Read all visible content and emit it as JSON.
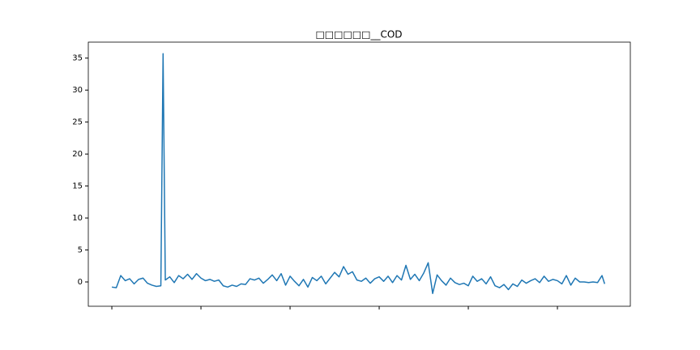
{
  "chart_data": {
    "type": "line",
    "title": "□□□□□□__COD",
    "x": [
      0,
      50,
      100,
      150,
      200,
      250,
      300,
      350,
      400,
      450,
      500,
      550,
      575,
      600,
      650,
      700,
      750,
      800,
      850,
      900,
      950,
      1000,
      1050,
      1100,
      1150,
      1200,
      1250,
      1300,
      1350,
      1400,
      1450,
      1500,
      1550,
      1600,
      1650,
      1700,
      1750,
      1800,
      1850,
      1900,
      1950,
      2000,
      2050,
      2100,
      2150,
      2200,
      2250,
      2300,
      2350,
      2400,
      2450,
      2500,
      2550,
      2600,
      2650,
      2700,
      2750,
      2800,
      2850,
      2900,
      2950,
      3000,
      3050,
      3100,
      3150,
      3200,
      3250,
      3300,
      3350,
      3400,
      3450,
      3500,
      3550,
      3600,
      3650,
      3700,
      3750,
      3800,
      3850,
      3900,
      3950,
      4000,
      4050,
      4100,
      4150,
      4200,
      4250,
      4300,
      4350,
      4400,
      4450,
      4500,
      4550,
      4600,
      4650,
      4700,
      4750,
      4800,
      4850,
      4900,
      4950,
      5000,
      5050,
      5100,
      5150,
      5200,
      5250,
      5300,
      5350,
      5400,
      5450,
      5500,
      5530
    ],
    "series": [
      {
        "color": "#1f77b4",
        "values": [
          -0.8,
          -0.9,
          1.0,
          0.2,
          0.5,
          -0.3,
          0.4,
          0.6,
          -0.2,
          -0.5,
          -0.7,
          -0.6,
          35.7,
          0.3,
          0.8,
          -0.1,
          1.0,
          0.5,
          1.2,
          0.4,
          1.3,
          0.6,
          0.2,
          0.4,
          0.1,
          0.3,
          -0.6,
          -0.8,
          -0.5,
          -0.7,
          -0.3,
          -0.4,
          0.5,
          0.3,
          0.6,
          -0.2,
          0.4,
          1.1,
          0.2,
          1.3,
          -0.5,
          0.9,
          0.1,
          -0.6,
          0.4,
          -0.8,
          0.7,
          0.2,
          0.9,
          -0.3,
          0.6,
          1.5,
          0.8,
          2.4,
          1.2,
          1.6,
          0.3,
          0.1,
          0.6,
          -0.2,
          0.5,
          0.8,
          0.1,
          0.9,
          -0.1,
          1.0,
          0.3,
          2.6,
          0.4,
          1.2,
          0.2,
          1.4,
          3.0,
          -1.8,
          1.1,
          0.2,
          -0.5,
          0.6,
          -0.1,
          -0.4,
          -0.2,
          -0.6,
          0.9,
          0.1,
          0.5,
          -0.3,
          0.8,
          -0.6,
          -0.9,
          -0.4,
          -1.2,
          -0.3,
          -0.7,
          0.3,
          -0.2,
          0.2,
          0.5,
          -0.1,
          0.9,
          0.1,
          0.4,
          0.2,
          -0.3,
          1.0,
          -0.5,
          0.6,
          0.0,
          0.0,
          -0.1,
          0.0,
          -0.1,
          1.0,
          -0.3
        ]
      }
    ],
    "xlim": [
      -264,
      5818
    ],
    "xticks": [
      0,
      1000,
      2000,
      3000,
      4000,
      5000
    ],
    "ylim": [
      -3.8,
      37.5
    ],
    "yticks": [
      0,
      5,
      10,
      15,
      20,
      25,
      30,
      35
    ]
  }
}
